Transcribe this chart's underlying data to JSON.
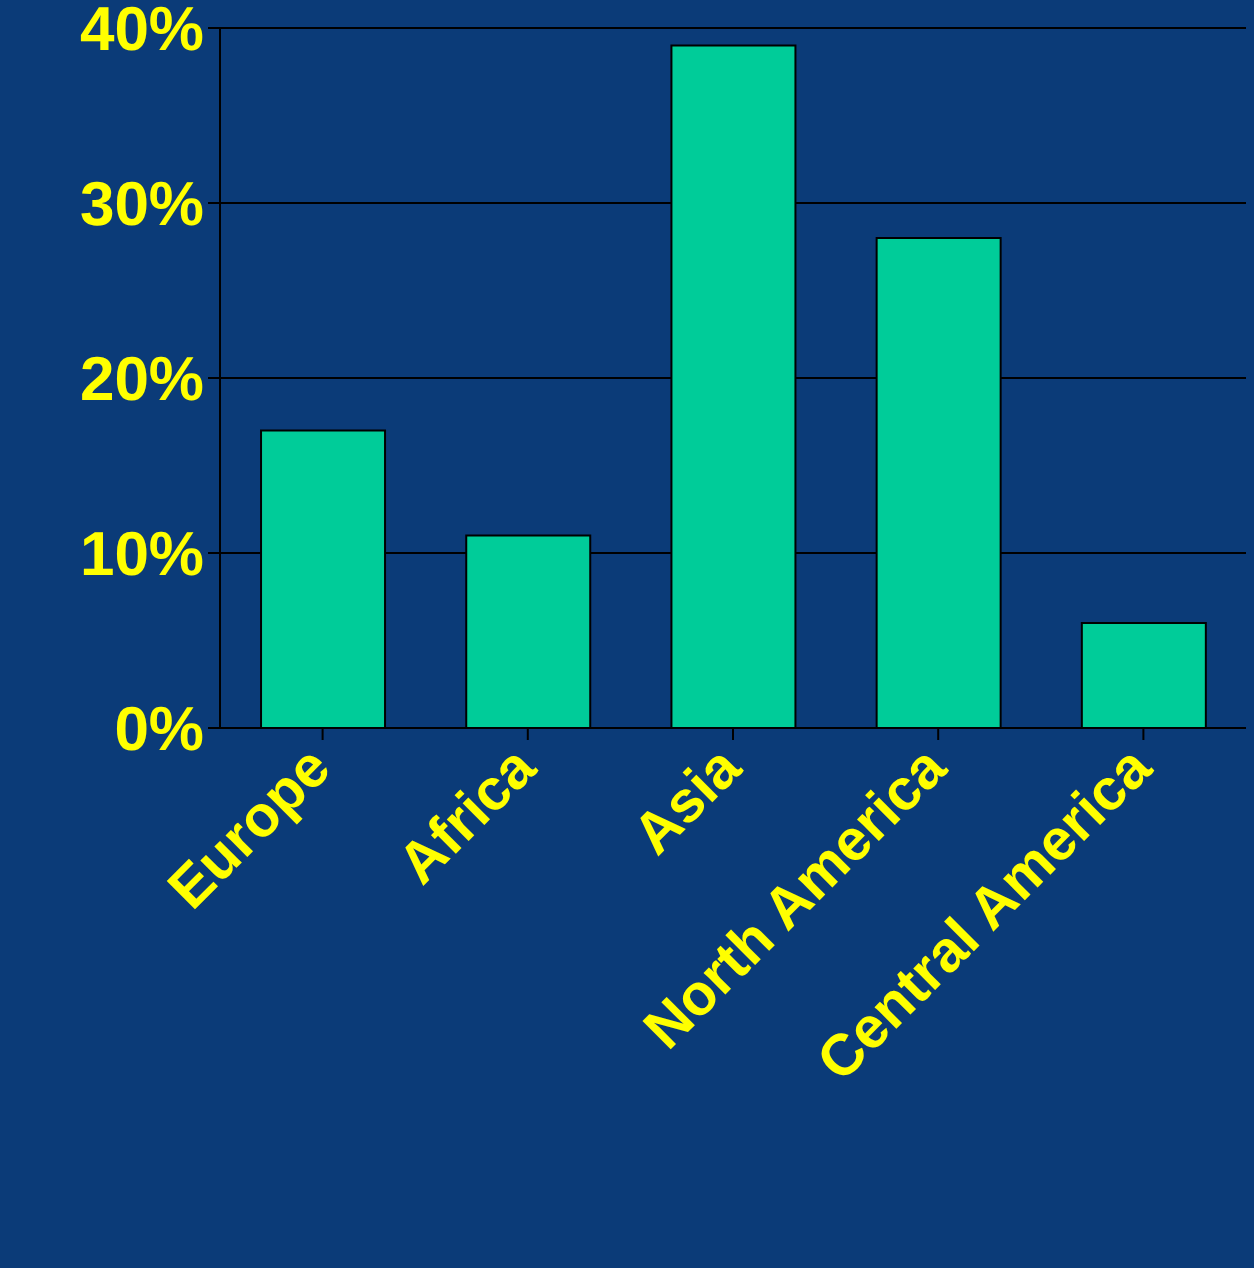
{
  "chart_data": {
    "type": "bar",
    "categories": [
      "Europe",
      "Africa",
      "Asia",
      "North America",
      "Central America"
    ],
    "values": [
      17,
      11,
      39,
      28,
      6
    ],
    "color": "#00cc99",
    "ylim": [
      0,
      40
    ],
    "yticks": [
      {
        "value": 0,
        "label": "0%"
      },
      {
        "value": 10,
        "label": "10%"
      },
      {
        "value": 20,
        "label": "20%"
      },
      {
        "value": 30,
        "label": "30%"
      },
      {
        "value": 40,
        "label": "40%"
      }
    ],
    "grid": "y",
    "legend": false
  }
}
